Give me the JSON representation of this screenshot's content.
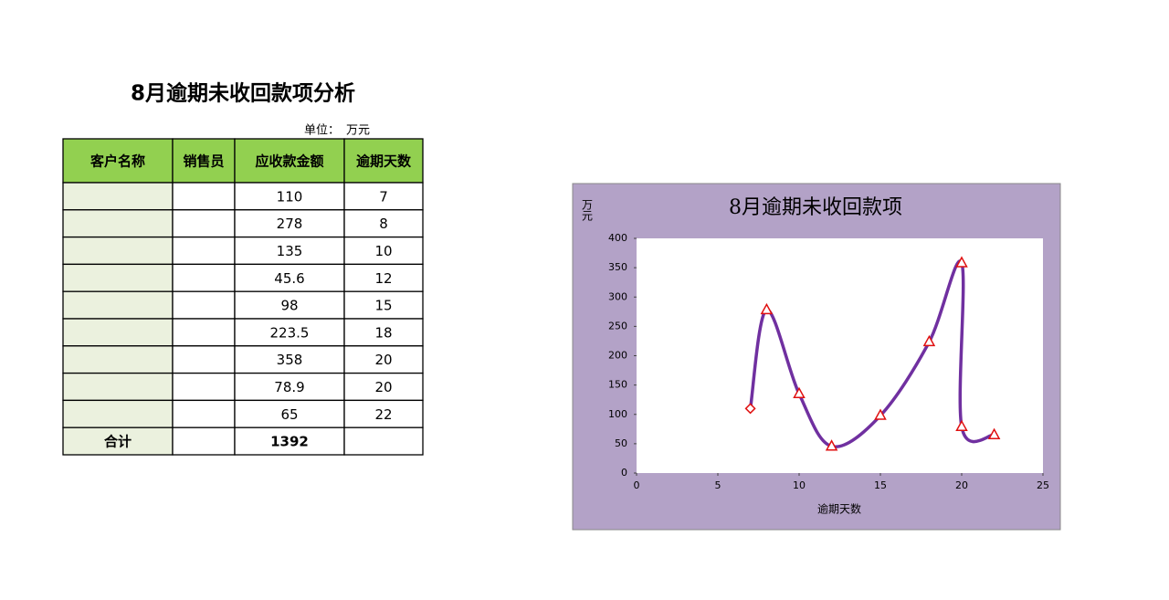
{
  "title": "8月逾期未收回款项分析",
  "unit": {
    "label": "单位：",
    "value": "万元"
  },
  "table": {
    "columns": [
      "客户名称",
      "销售员",
      "应收款金额",
      "逾期天数"
    ],
    "rows": [
      [
        110,
        7
      ],
      [
        278,
        8
      ],
      [
        135,
        10
      ],
      [
        45.6,
        12
      ],
      [
        98,
        15
      ],
      [
        223.5,
        18
      ],
      [
        358,
        20
      ],
      [
        78.9,
        20
      ],
      [
        65,
        22
      ]
    ],
    "total": {
      "label": "合计",
      "amount": 1392
    }
  },
  "chart_data": {
    "type": "scatter",
    "title": "8月逾期未收回款项",
    "y_label": "万元",
    "x_label": "逾期天数",
    "x": [
      7,
      8,
      10,
      12,
      15,
      18,
      20,
      20,
      22
    ],
    "values": [
      110,
      278,
      135,
      45.6,
      98,
      223.5,
      358,
      78.9,
      65
    ],
    "markers": [
      "diamond",
      "triangle",
      "triangle",
      "triangle",
      "triangle",
      "triangle",
      "triangle",
      "triangle",
      "triangle"
    ],
    "line_color": "#7030a0",
    "marker_color": "#e01010",
    "background": "#b3a2c7",
    "xlim": [
      0,
      25
    ],
    "xticks": [
      0,
      5,
      10,
      15,
      20,
      25
    ],
    "ylim": [
      0,
      400
    ],
    "yticks": [
      0,
      50,
      100,
      150,
      200,
      250,
      300,
      350,
      400
    ]
  }
}
